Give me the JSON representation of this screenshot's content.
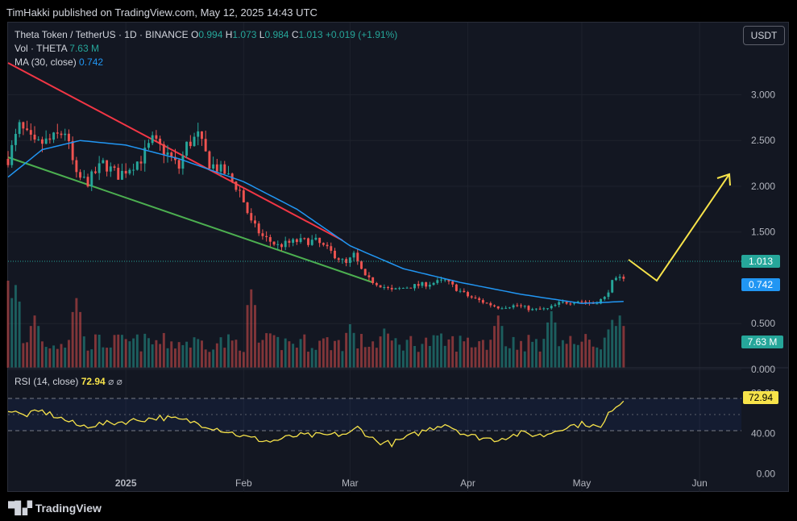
{
  "header": {
    "published": "TimHakki published on TradingView.com, May 12, 2025 14:43 UTC"
  },
  "legend": {
    "symbol": "Theta Token / TetherUS · 1D · BINANCE",
    "o_label": "O",
    "o": "0.994",
    "h_label": "H",
    "h": "1.073",
    "l_label": "L",
    "l": "0.984",
    "c_label": "C",
    "c": "1.013",
    "change": "+0.019 (+1.91%)",
    "vol_label": "Vol · THETA",
    "vol": "7.63 M",
    "ma_label": "MA (30, close)",
    "ma": "0.742"
  },
  "rsi": {
    "label": "RSI (14, close)",
    "value": "72.94",
    "icons": "⌀ ⌀"
  },
  "currency_button": "USDT",
  "footer": {
    "brand": "TradingView",
    "logo_icon": "tradingview-logo-icon"
  },
  "colors": {
    "bg": "#131722",
    "up": "#26a69a",
    "down": "#ef5350",
    "ma": "#2196f3",
    "rsi": "#f7e34a",
    "resistance": "#f23645",
    "support": "#4caf50",
    "projection": "#f7e34a"
  },
  "chart_data": [
    {
      "type": "candlestick",
      "title": "Theta Token / TetherUS · 1D · BINANCE",
      "y_ticks": [
        "3.000",
        "2.500",
        "2.000",
        "1.500",
        "0.500",
        "0.000"
      ],
      "x_ticks": [
        "2025",
        "Feb",
        "Mar",
        "Apr",
        "May",
        "Jun"
      ],
      "x_tick_dates": [
        "2025-01-01",
        "2025-02-01",
        "2025-03-01",
        "2025-04-01",
        "2025-05-01",
        "2025-06-01"
      ],
      "x_range": [
        "2024-12-01",
        "2025-06-12"
      ],
      "ylim": [
        0,
        3.55
      ],
      "last_price_label": "1.013",
      "ma_label": "0.742",
      "volume_label": "7.63 M",
      "anchors": [
        [
          "2024-12-01",
          2.3
        ],
        [
          "2024-12-04",
          2.65
        ],
        [
          "2024-12-08",
          2.45
        ],
        [
          "2024-12-12",
          2.5
        ],
        [
          "2024-12-16",
          2.6
        ],
        [
          "2024-12-19",
          2.1
        ],
        [
          "2024-12-22",
          2.05
        ],
        [
          "2024-12-26",
          2.25
        ],
        [
          "2024-12-30",
          2.12
        ],
        [
          "2025-01-05",
          2.3
        ],
        [
          "2025-01-08",
          2.5
        ],
        [
          "2025-01-12",
          2.35
        ],
        [
          "2025-01-15",
          2.2
        ],
        [
          "2025-01-17",
          2.45
        ],
        [
          "2025-01-20",
          2.55
        ],
        [
          "2025-01-23",
          2.25
        ],
        [
          "2025-01-27",
          2.15
        ],
        [
          "2025-01-31",
          1.95
        ],
        [
          "2025-02-03",
          1.6
        ],
        [
          "2025-02-06",
          1.45
        ],
        [
          "2025-02-10",
          1.35
        ],
        [
          "2025-02-15",
          1.4
        ],
        [
          "2025-02-20",
          1.4
        ],
        [
          "2025-02-24",
          1.28
        ],
        [
          "2025-02-28",
          1.15
        ],
        [
          "2025-03-02",
          1.25
        ],
        [
          "2025-03-05",
          1.0
        ],
        [
          "2025-03-09",
          0.92
        ],
        [
          "2025-03-12",
          0.86
        ],
        [
          "2025-03-16",
          0.9
        ],
        [
          "2025-03-21",
          0.93
        ],
        [
          "2025-03-26",
          0.97
        ],
        [
          "2025-03-29",
          0.88
        ],
        [
          "2025-04-01",
          0.8
        ],
        [
          "2025-04-06",
          0.72
        ],
        [
          "2025-04-09",
          0.68
        ],
        [
          "2025-04-14",
          0.7
        ],
        [
          "2025-04-18",
          0.65
        ],
        [
          "2025-04-22",
          0.66
        ],
        [
          "2025-04-25",
          0.72
        ],
        [
          "2025-04-30",
          0.75
        ],
        [
          "2025-05-04",
          0.72
        ],
        [
          "2025-05-07",
          0.78
        ],
        [
          "2025-05-09",
          0.95
        ],
        [
          "2025-05-12",
          1.013
        ]
      ],
      "ma_anchors": [
        [
          "2024-12-01",
          2.1
        ],
        [
          "2024-12-10",
          2.4
        ],
        [
          "2024-12-20",
          2.5
        ],
        [
          "2025-01-01",
          2.45
        ],
        [
          "2025-01-15",
          2.3
        ],
        [
          "2025-02-01",
          2.05
        ],
        [
          "2025-02-15",
          1.75
        ],
        [
          "2025-03-01",
          1.35
        ],
        [
          "2025-03-15",
          1.1
        ],
        [
          "2025-03-30",
          0.95
        ],
        [
          "2025-04-15",
          0.82
        ],
        [
          "2025-05-01",
          0.72
        ],
        [
          "2025-05-12",
          0.742
        ]
      ],
      "volume_peaks": [
        [
          "2024-12-01",
          1.0
        ],
        [
          "2024-12-03",
          0.95
        ],
        [
          "2024-12-08",
          0.6
        ],
        [
          "2024-12-19",
          0.8
        ],
        [
          "2025-02-03",
          0.9
        ],
        [
          "2025-03-01",
          0.5
        ],
        [
          "2025-03-10",
          0.45
        ],
        [
          "2025-04-09",
          0.6
        ],
        [
          "2025-04-23",
          0.65
        ],
        [
          "2025-05-09",
          0.55
        ],
        [
          "2025-05-11",
          0.6
        ]
      ]
    },
    {
      "type": "line",
      "title": "RSI (14, close)",
      "y_ticks": [
        "80.00",
        "40.00",
        "0.00"
      ],
      "ylim": [
        -10,
        90
      ],
      "last_value_label": "72.94",
      "anchors": [
        [
          "2024-12-01",
          63
        ],
        [
          "2024-12-05",
          58
        ],
        [
          "2024-12-10",
          62
        ],
        [
          "2024-12-15",
          55
        ],
        [
          "2024-12-20",
          47
        ],
        [
          "2025-01-01",
          52
        ],
        [
          "2025-01-10",
          56
        ],
        [
          "2025-01-18",
          52
        ],
        [
          "2025-01-25",
          45
        ],
        [
          "2025-02-02",
          36
        ],
        [
          "2025-02-08",
          32
        ],
        [
          "2025-02-15",
          38
        ],
        [
          "2025-02-22",
          38
        ],
        [
          "2025-03-01",
          40
        ],
        [
          "2025-03-03",
          46
        ],
        [
          "2025-03-08",
          32
        ],
        [
          "2025-03-12",
          30
        ],
        [
          "2025-03-20",
          42
        ],
        [
          "2025-03-26",
          50
        ],
        [
          "2025-04-01",
          38
        ],
        [
          "2025-04-08",
          34
        ],
        [
          "2025-04-15",
          40
        ],
        [
          "2025-04-21",
          38
        ],
        [
          "2025-04-26",
          46
        ],
        [
          "2025-05-02",
          50
        ],
        [
          "2025-05-06",
          45
        ],
        [
          "2025-05-09",
          65
        ],
        [
          "2025-05-12",
          72.94
        ]
      ]
    }
  ]
}
